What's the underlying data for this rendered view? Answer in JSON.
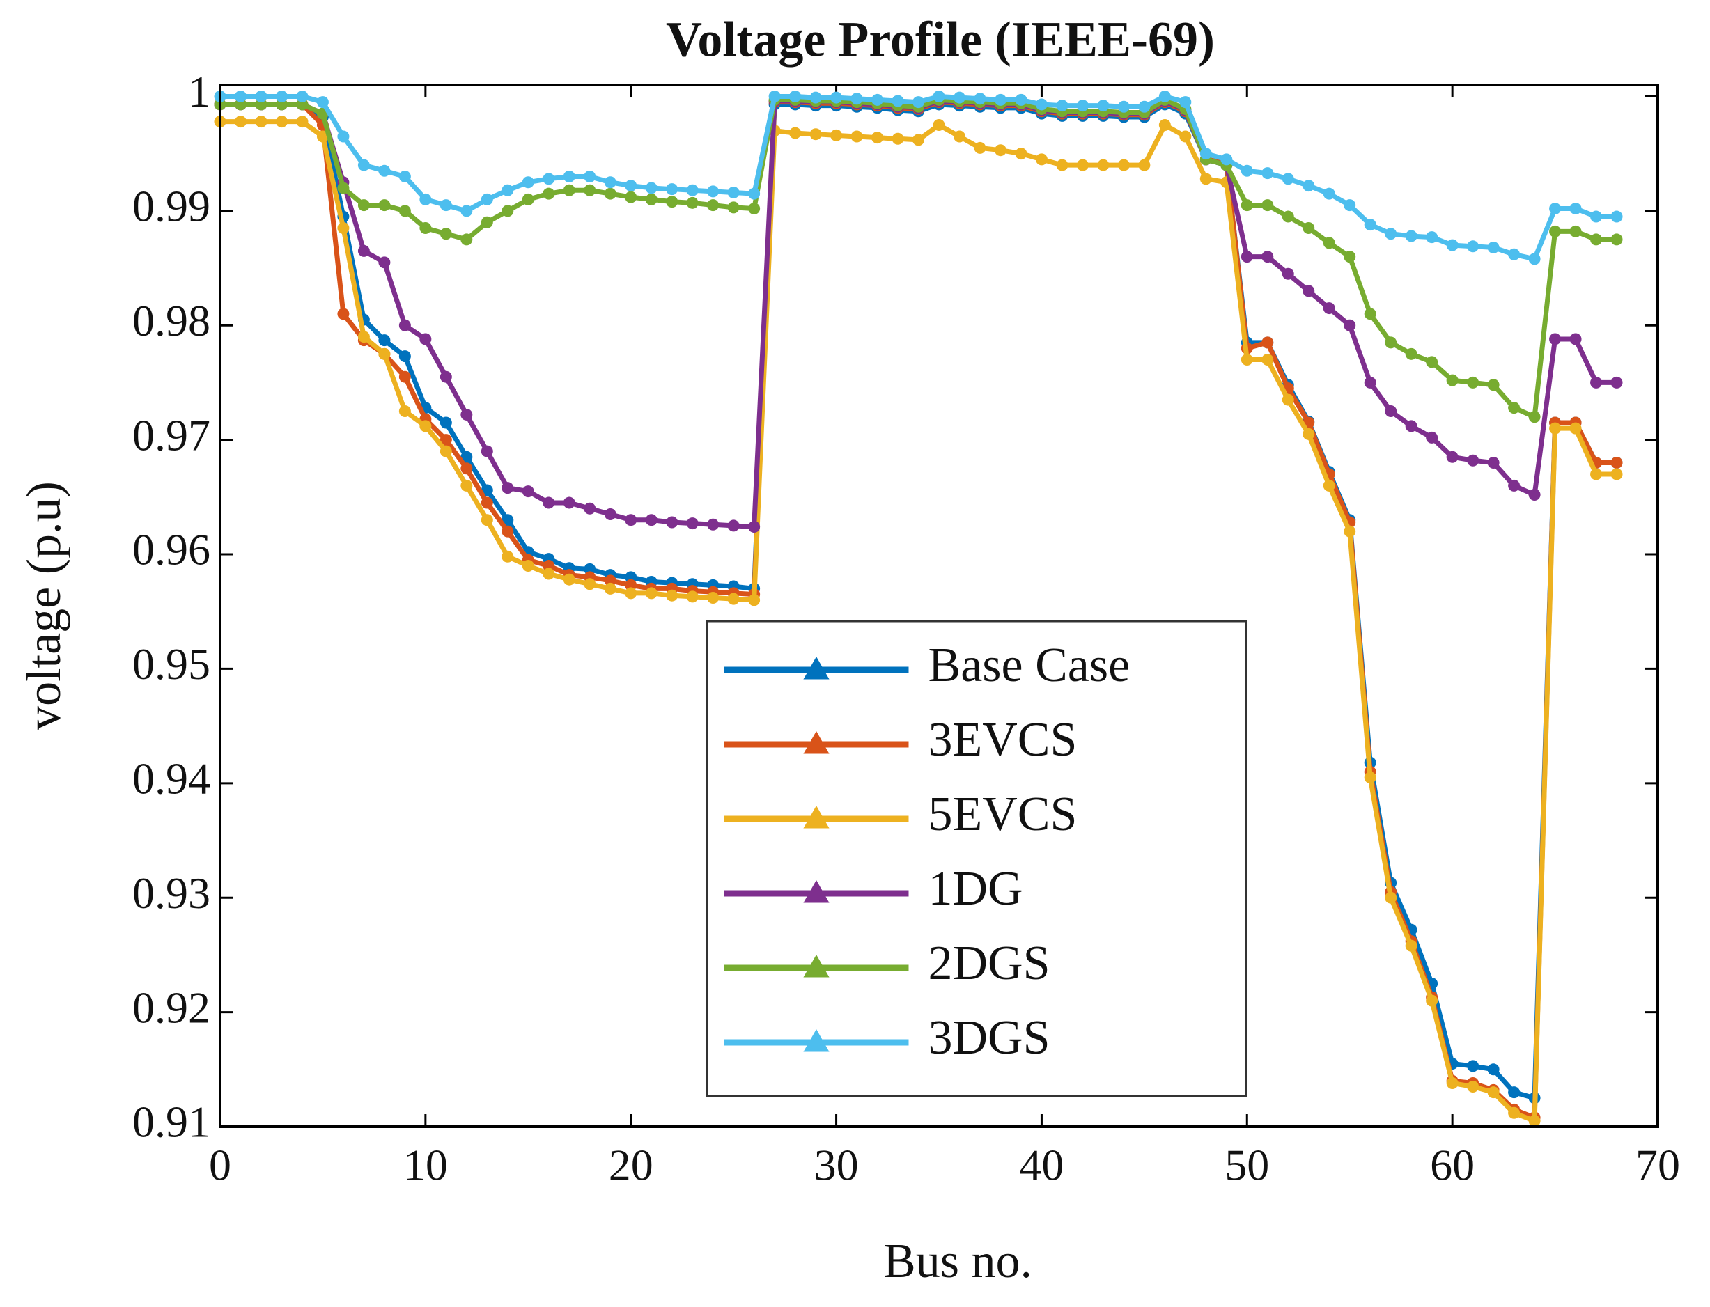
{
  "chart_data": {
    "type": "line",
    "title": "Voltage Profile (IEEE-69)",
    "x_label": "Bus no.",
    "y_label": "voltage (p.u)",
    "x": [
      0,
      1,
      2,
      3,
      4,
      5,
      6,
      7,
      8,
      9,
      10,
      11,
      12,
      13,
      14,
      15,
      16,
      17,
      18,
      19,
      20,
      21,
      22,
      23,
      24,
      25,
      26,
      27,
      28,
      29,
      30,
      31,
      32,
      33,
      34,
      35,
      36,
      37,
      38,
      39,
      40,
      41,
      42,
      43,
      44,
      45,
      46,
      47,
      48,
      49,
      50,
      51,
      52,
      53,
      54,
      55,
      56,
      57,
      58,
      59,
      60,
      61,
      62,
      63,
      64,
      65,
      66,
      67,
      68
    ],
    "xlim": [
      0,
      70
    ],
    "xticks": [
      0,
      10,
      20,
      30,
      40,
      50,
      60,
      70
    ],
    "ylim": [
      0.91,
      1.001
    ],
    "yticks": [
      0.91,
      0.92,
      0.93,
      0.94,
      0.95,
      0.96,
      0.97,
      0.98,
      0.99,
      1
    ],
    "grid": false,
    "legend": "lower center",
    "series": [
      {
        "name": "Base Case",
        "color": "#0072BD",
        "values": [
          0.9993,
          0.9993,
          0.9993,
          0.9993,
          0.9993,
          0.9982,
          0.9895,
          0.9805,
          0.9787,
          0.9773,
          0.9728,
          0.9715,
          0.9685,
          0.9656,
          0.963,
          0.9602,
          0.9596,
          0.9588,
          0.9587,
          0.9582,
          0.958,
          0.9576,
          0.9575,
          0.9574,
          0.9573,
          0.9572,
          0.957,
          0.9993,
          0.9993,
          0.9992,
          0.9992,
          0.9991,
          0.999,
          0.9988,
          0.9987,
          0.9993,
          0.9992,
          0.9991,
          0.999,
          0.999,
          0.9985,
          0.9983,
          0.9983,
          0.9983,
          0.9982,
          0.9982,
          0.9993,
          0.9985,
          0.9945,
          0.994,
          0.9785,
          0.9785,
          0.9748,
          0.9716,
          0.9672,
          0.963,
          0.9418,
          0.9313,
          0.9272,
          0.9225,
          0.9155,
          0.9153,
          0.915,
          0.913,
          0.9125,
          0.9715,
          0.9715,
          0.968,
          0.968
        ]
      },
      {
        "name": "3EVCS",
        "color": "#D95319",
        "values": [
          0.9993,
          0.9993,
          0.9993,
          0.9993,
          0.9993,
          0.9975,
          0.981,
          0.9787,
          0.9775,
          0.9755,
          0.9718,
          0.97,
          0.9675,
          0.9645,
          0.962,
          0.9595,
          0.959,
          0.9582,
          0.958,
          0.9577,
          0.9573,
          0.957,
          0.957,
          0.9568,
          0.9567,
          0.9566,
          0.9565,
          0.9995,
          0.9995,
          0.9994,
          0.9994,
          0.9993,
          0.9992,
          0.999,
          0.9989,
          0.9995,
          0.9994,
          0.9993,
          0.9992,
          0.9992,
          0.9987,
          0.9985,
          0.9985,
          0.9985,
          0.9984,
          0.9984,
          0.9995,
          0.9987,
          0.9945,
          0.9942,
          0.978,
          0.9785,
          0.9745,
          0.9715,
          0.967,
          0.9628,
          0.941,
          0.9305,
          0.9262,
          0.9213,
          0.914,
          0.9138,
          0.9132,
          0.9115,
          0.9108,
          0.9715,
          0.9715,
          0.968,
          0.968
        ]
      },
      {
        "name": "5EVCS",
        "color": "#EDB120",
        "values": [
          0.9978,
          0.9978,
          0.9978,
          0.9978,
          0.9978,
          0.9965,
          0.9885,
          0.979,
          0.9775,
          0.9725,
          0.9712,
          0.969,
          0.966,
          0.963,
          0.9598,
          0.959,
          0.9583,
          0.9578,
          0.9574,
          0.957,
          0.9566,
          0.9566,
          0.9564,
          0.9563,
          0.9562,
          0.9561,
          0.956,
          0.997,
          0.9968,
          0.9967,
          0.9966,
          0.9965,
          0.9964,
          0.9963,
          0.9962,
          0.9975,
          0.9965,
          0.9955,
          0.9953,
          0.995,
          0.9945,
          0.994,
          0.994,
          0.994,
          0.994,
          0.994,
          0.9975,
          0.9965,
          0.9928,
          0.9925,
          0.977,
          0.977,
          0.9735,
          0.9705,
          0.966,
          0.962,
          0.9405,
          0.93,
          0.9258,
          0.921,
          0.9138,
          0.9135,
          0.913,
          0.9112,
          0.9105,
          0.971,
          0.971,
          0.967,
          0.967
        ]
      },
      {
        "name": "1DG",
        "color": "#7E2F8E",
        "values": [
          0.9993,
          0.9993,
          0.9993,
          0.9993,
          0.9993,
          0.9985,
          0.9925,
          0.9865,
          0.9855,
          0.98,
          0.9788,
          0.9755,
          0.9722,
          0.969,
          0.9658,
          0.9655,
          0.9645,
          0.9645,
          0.964,
          0.9635,
          0.963,
          0.963,
          0.9628,
          0.9627,
          0.9626,
          0.9625,
          0.9624,
          0.9996,
          0.9996,
          0.9995,
          0.9995,
          0.9994,
          0.9993,
          0.9991,
          0.999,
          0.9996,
          0.9995,
          0.9994,
          0.9993,
          0.9993,
          0.9988,
          0.9986,
          0.9986,
          0.9986,
          0.9985,
          0.9985,
          0.9996,
          0.9988,
          0.9945,
          0.994,
          0.986,
          0.986,
          0.9845,
          0.983,
          0.9815,
          0.98,
          0.975,
          0.9725,
          0.9712,
          0.9702,
          0.9685,
          0.9682,
          0.968,
          0.966,
          0.9652,
          0.9788,
          0.9788,
          0.975,
          0.975
        ]
      },
      {
        "name": "2DGS",
        "color": "#77AC30",
        "values": [
          0.9993,
          0.9993,
          0.9993,
          0.9993,
          0.9993,
          0.9985,
          0.992,
          0.9905,
          0.9905,
          0.99,
          0.9885,
          0.988,
          0.9875,
          0.989,
          0.99,
          0.991,
          0.9915,
          0.9918,
          0.9918,
          0.9915,
          0.9912,
          0.991,
          0.9908,
          0.9907,
          0.9905,
          0.9903,
          0.9902,
          0.9997,
          0.9997,
          0.9996,
          0.9996,
          0.9995,
          0.9994,
          0.9992,
          0.9991,
          0.9997,
          0.9996,
          0.9995,
          0.9994,
          0.9994,
          0.9989,
          0.9987,
          0.9987,
          0.9987,
          0.9986,
          0.9986,
          0.9997,
          0.9989,
          0.9945,
          0.994,
          0.9905,
          0.9905,
          0.9895,
          0.9885,
          0.9872,
          0.986,
          0.981,
          0.9785,
          0.9775,
          0.9768,
          0.9752,
          0.975,
          0.9748,
          0.9728,
          0.972,
          0.9882,
          0.9882,
          0.9875,
          0.9875
        ]
      },
      {
        "name": "3DGS",
        "color": "#4DBEEE",
        "values": [
          1.0,
          1.0,
          1.0,
          1.0,
          1.0,
          0.9995,
          0.9965,
          0.994,
          0.9935,
          0.993,
          0.991,
          0.9905,
          0.99,
          0.991,
          0.9918,
          0.9925,
          0.9928,
          0.993,
          0.993,
          0.9925,
          0.9922,
          0.992,
          0.9919,
          0.9918,
          0.9917,
          0.9916,
          0.9915,
          1.0,
          1.0,
          0.9999,
          0.9999,
          0.9998,
          0.9997,
          0.9996,
          0.9995,
          1.0,
          0.9999,
          0.9998,
          0.9997,
          0.9997,
          0.9993,
          0.9992,
          0.9992,
          0.9992,
          0.9991,
          0.9991,
          1.0,
          0.9995,
          0.995,
          0.9945,
          0.9935,
          0.9933,
          0.9928,
          0.9922,
          0.9915,
          0.9905,
          0.9888,
          0.988,
          0.9878,
          0.9877,
          0.987,
          0.9869,
          0.9868,
          0.9862,
          0.9858,
          0.9902,
          0.9902,
          0.9895,
          0.9895
        ]
      }
    ]
  }
}
